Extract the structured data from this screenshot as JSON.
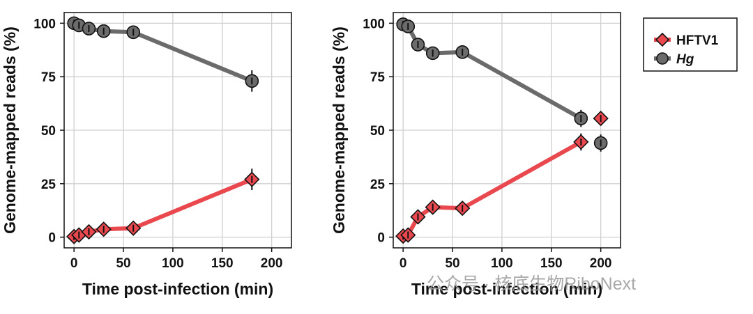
{
  "chart_data": [
    {
      "type": "line",
      "xlabel": "Time post-infection (min)",
      "ylabel": "Genome-mapped reads (%)",
      "xlim": [
        -10,
        220
      ],
      "ylim": [
        -5,
        105
      ],
      "xticks": [
        0,
        50,
        100,
        150,
        200
      ],
      "yticks": [
        0,
        25,
        50,
        75,
        100
      ],
      "grid": true,
      "series": [
        {
          "name": "Hg",
          "color": "#6b6b6b",
          "marker": "circle",
          "points": [
            {
              "x": 0,
              "y": 100,
              "err": 0.5
            },
            {
              "x": 5,
              "y": 99,
              "err": 1
            },
            {
              "x": 15,
              "y": 97.5,
              "err": 1.5
            },
            {
              "x": 30,
              "y": 96.3,
              "err": 2
            },
            {
              "x": 60,
              "y": 95.8,
              "err": 1.5
            },
            {
              "x": 180,
              "y": 73,
              "err": 5
            }
          ]
        },
        {
          "name": "HFTV1",
          "color": "#e8484e",
          "marker": "diamond",
          "points": [
            {
              "x": 0,
              "y": 0.3,
              "err": 0.3
            },
            {
              "x": 5,
              "y": 1,
              "err": 1
            },
            {
              "x": 15,
              "y": 2.5,
              "err": 1.5
            },
            {
              "x": 30,
              "y": 3.7,
              "err": 2
            },
            {
              "x": 60,
              "y": 4.2,
              "err": 1.5
            },
            {
              "x": 180,
              "y": 27,
              "err": 5
            }
          ]
        }
      ]
    },
    {
      "type": "line",
      "xlabel": "Time post-infection (min)",
      "ylabel": "Genome-mapped reads (%)",
      "xlim": [
        -10,
        220
      ],
      "ylim": [
        -5,
        105
      ],
      "xticks": [
        0,
        50,
        100,
        150,
        200
      ],
      "yticks": [
        0,
        25,
        50,
        75,
        100
      ],
      "grid": true,
      "series": [
        {
          "name": "Hg",
          "color": "#6b6b6b",
          "marker": "circle",
          "points": [
            {
              "x": 0,
              "y": 99.5,
              "err": 0.5
            },
            {
              "x": 5,
              "y": 98.5,
              "err": 1.5
            },
            {
              "x": 15,
              "y": 90,
              "err": 3
            },
            {
              "x": 30,
              "y": 86,
              "err": 2
            },
            {
              "x": 60,
              "y": 86.5,
              "err": 2
            },
            {
              "x": 180,
              "y": 55.5,
              "err": 4
            },
            {
              "x": 200,
              "y": 44,
              "err": 4
            }
          ]
        },
        {
          "name": "HFTV1",
          "color": "#e8484e",
          "marker": "diamond",
          "points": [
            {
              "x": 0,
              "y": 0.5,
              "err": 0.5
            },
            {
              "x": 5,
              "y": 1,
              "err": 1.5
            },
            {
              "x": 15,
              "y": 9.5,
              "err": 3
            },
            {
              "x": 30,
              "y": 14,
              "err": 2
            },
            {
              "x": 60,
              "y": 13.5,
              "err": 2
            },
            {
              "x": 180,
              "y": 44.5,
              "err": 4
            },
            {
              "x": 200,
              "y": 55.5,
              "err": 1
            }
          ]
        }
      ]
    }
  ],
  "legend": {
    "position": "top-right",
    "entries": [
      {
        "label": "HFTV1",
        "marker": "diamond",
        "color": "#e8484e",
        "italic": false
      },
      {
        "label": "Hg",
        "marker": "circle",
        "color": "#6b6b6b",
        "italic": true
      }
    ]
  },
  "watermark": {
    "text": "公众号 · 核底生物RiboNext"
  }
}
